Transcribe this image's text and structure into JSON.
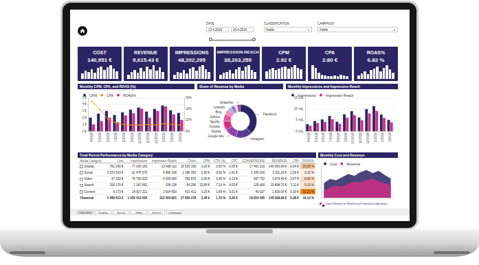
{
  "filters": [
    {
      "label": "DATE",
      "values": [
        "13.4.2018",
        "16.4.2019"
      ]
    },
    {
      "label": "CLASSIFICATION",
      "values": [
        "Kaikki"
      ]
    },
    {
      "label": "CAMPAIGN",
      "values": [
        "Kaikki"
      ]
    }
  ],
  "kpis": [
    {
      "title": "COST",
      "value": "140,951 €",
      "spark": [
        8,
        12,
        10,
        14,
        9,
        16,
        18,
        13,
        17,
        20,
        15,
        11
      ]
    },
    {
      "title": "REVENUE",
      "value": "9,615.43 €",
      "spark": [
        5,
        9,
        12,
        8,
        14,
        10,
        16,
        13,
        18,
        11,
        15,
        9
      ]
    },
    {
      "title": "IMPRESSIONS",
      "value": "48,202,295",
      "spark": [
        6,
        10,
        9,
        13,
        8,
        15,
        17,
        12,
        18,
        20,
        14,
        10
      ]
    },
    {
      "title": "IMPRESSION REACH",
      "value": "38,263,259",
      "spark": [
        5,
        8,
        9,
        12,
        7,
        13,
        15,
        11,
        16,
        18,
        12,
        9
      ]
    },
    {
      "title": "CPM",
      "value": "2.92 €",
      "spark": [
        10,
        13,
        15,
        12,
        14,
        16,
        17,
        14,
        16,
        19,
        15,
        13
      ]
    },
    {
      "title": "CPA",
      "value": "2.80 €",
      "spark": [
        20,
        16,
        9,
        6,
        5,
        4,
        4,
        5,
        4,
        6,
        5,
        4
      ]
    },
    {
      "title": "ROAS%",
      "value": "6.82 %",
      "spark": [
        6,
        9,
        12,
        8,
        14,
        16,
        20,
        12,
        18,
        22,
        15,
        10
      ]
    }
  ],
  "chart_data": [
    {
      "type": "bar",
      "title": "Monthly CPM, CPA, and ROAS (%)",
      "categories": [
        "4/2018",
        "5/2018",
        "6/2018",
        "7/2018",
        "8/2018",
        "9/2018",
        "10/2018",
        "11/2018",
        "12/2018",
        "1/2019",
        "2/2019",
        "3/2019"
      ],
      "series": [
        {
          "name": "CPM",
          "color": "#2d2464",
          "values": [
            2.0,
            2.6,
            3.0,
            2.4,
            2.8,
            3.2,
            3.5,
            2.9,
            3.3,
            3.8,
            3.1,
            2.7
          ]
        },
        {
          "name": "CPA",
          "type": "line",
          "color": "#f39c12",
          "marker": "circle",
          "values": [
            4.4,
            3.2,
            1.8,
            1.2,
            1.0,
            0.9,
            0.9,
            1.0,
            0.9,
            1.1,
            1.0,
            0.9
          ]
        },
        {
          "name": "ROAS%",
          "color": "#d12e86",
          "axis": "y2",
          "values": [
            6,
            9,
            12,
            8,
            14,
            16,
            20,
            12,
            18,
            22,
            15,
            10
          ]
        }
      ],
      "ylim": [
        0,
        5
      ],
      "yticks": [
        {
          "value": 0,
          "label": "0 €"
        },
        {
          "value": 1,
          "label": "1 €"
        },
        {
          "value": 2,
          "label": "2 €"
        },
        {
          "value": 3,
          "label": "3 €"
        },
        {
          "value": 4,
          "label": "4 €"
        },
        {
          "value": 5,
          "label": "5 €"
        }
      ],
      "y2lim": [
        0,
        30
      ],
      "y2ticks": [
        {
          "value": 0,
          "label": "0%"
        },
        {
          "value": 10,
          "label": "10%"
        },
        {
          "value": 20,
          "label": "20%"
        },
        {
          "value": 30,
          "label": "30%"
        }
      ],
      "grid": true,
      "legend": "top-left"
    },
    {
      "type": "pie",
      "title": "Share of Revenue by Media",
      "categories": [
        "Facebook",
        "Instagram",
        "Google Ads",
        "Display",
        "Youtube",
        "Spotify",
        "Adform",
        "Bing",
        "LinkedIn",
        "Snapchat"
      ],
      "values": [
        38,
        16,
        12,
        9,
        7,
        5,
        4,
        3,
        3,
        3
      ],
      "colors": [
        "#2d2464",
        "#5a3d8a",
        "#8e44ad",
        "#d12e86",
        "#e0559c",
        "#f08ab8",
        "#b9a8d8",
        "#7d6bb0",
        "#d9d2ec",
        "#a33f8f"
      ]
    },
    {
      "type": "bar",
      "title": "Monthly Impressions and Impression Reach",
      "categories": [
        "4/2018",
        "5/2018",
        "6/2018",
        "7/2018",
        "8/2018",
        "9/2018",
        "10/2018",
        "11/2018",
        "12/2018",
        "1/2019",
        "2/2019",
        "3/2019"
      ],
      "series": [
        {
          "name": "Impressions",
          "color": "#2d2464",
          "values": [
            3100000,
            4500000,
            5200000,
            6800000,
            4200000,
            7500000,
            8900000,
            6100000,
            9800000,
            11200000,
            7400000,
            5000000
          ]
        },
        {
          "name": "Impression Reach",
          "color": "#d12e86",
          "values": [
            2400000,
            3600000,
            4100000,
            5300000,
            3300000,
            6000000,
            7100000,
            4800000,
            7900000,
            9000000,
            5900000,
            3900000
          ]
        }
      ],
      "ylim": [
        0,
        15000000
      ],
      "yticks": [
        {
          "value": 0,
          "label": "0 milj."
        },
        {
          "value": 5000000,
          "label": "5 milj."
        },
        {
          "value": 10000000,
          "label": "10 milj."
        },
        {
          "value": 15000000,
          "label": "15 milj."
        }
      ],
      "grid": true,
      "legend": "top-left"
    },
    {
      "type": "area",
      "title": "Monthly Cost and Revenue",
      "categories": [
        "4/2018",
        "5/2018",
        "6/2018",
        "7/2018",
        "8/2018",
        "9/2018",
        "10/2018",
        "11/2018",
        "12/2018",
        "1/2019",
        "2/2019",
        "3/2019"
      ],
      "series": [
        {
          "name": "Cost",
          "color": "#2d2464",
          "values": [
            320000,
            410000,
            380000,
            450000,
            520000,
            480000,
            560000,
            610000,
            540000,
            590000,
            500000,
            420000
          ]
        },
        {
          "name": "Revenue",
          "color": "#d12e86",
          "values": [
            150000,
            220000,
            260000,
            240000,
            300000,
            350000,
            330000,
            380000,
            420000,
            360000,
            310000,
            280000
          ]
        }
      ],
      "ylim": [
        0,
        700000
      ],
      "yticks": [],
      "tick_labels": false,
      "legend": "top-left"
    }
  ],
  "table": {
    "title": "Total Period Performance by Media Category",
    "columns": [
      "Media Category",
      "Cost",
      "Impressions",
      "Impression Reach",
      "Clicks",
      "CPM",
      "CTR (%)",
      "CPC",
      "CONVERSIONS",
      "REVENUE",
      "CPA",
      "ROAS%"
    ],
    "rows": [
      [
        "Display",
        "761 240 €",
        "77 193 183",
        "13 468 112",
        "15 533 150",
        "3,20 €",
        "0,50 %",
        "0,05 €",
        "17 461 210",
        "140 650,00 €",
        "0,04 €",
        "23,58 %"
      ],
      [
        "Social",
        "2 074 519 €",
        "21 476 579",
        "4 966 100",
        "1 286 350",
        "2,90 €",
        "0,62 %",
        "1,61 €",
        "1 330 016",
        "3 011,20 €",
        "1,56 €",
        "0,15 %"
      ],
      [
        "Video",
        "47 220 €",
        "78 750 633",
        "4 500 000",
        "350 870",
        "0,60 €",
        "0,45 %",
        "0,13 €",
        "697 752",
        "3 976,40 €",
        "0,07 €",
        "8,42 %"
      ],
      [
        "Search",
        "390 170 €",
        "1 187 662",
        "158 136",
        "84 296",
        "32,85 €",
        "7,10 %",
        "4,63 €",
        "125 460",
        "19 898,70 €",
        "3,11 €",
        "5,10 %"
      ],
      [
        "Content",
        "6 173 €",
        "24 927 211",
        "2 604 650",
        "421 412",
        "0,25 €",
        "1,69 %",
        "0,01 €",
        "40 027",
        "1 926,00 €",
        "0,15 €",
        "31,20 %"
      ]
    ],
    "colors": [
      "#f8c9a0",
      "#fdeee2",
      "#fbdcc2",
      "#fde3cd",
      "#f08a24"
    ],
    "total": [
      "Yhteensä",
      "5 580 613 €",
      "1 035 413 565",
      "312 064 801",
      "17 650 078",
      "3,46 €",
      "1,70 %",
      "0,20 €",
      "19 654 465",
      "145 008,90 €",
      "0,28 €",
      "16,14 %"
    ]
  },
  "footer_text": "Data Platform for Marketing Performance Analytics",
  "tabs": [
    "Overview",
    "Display",
    "Social",
    "Video",
    "Search",
    "Campaign"
  ]
}
